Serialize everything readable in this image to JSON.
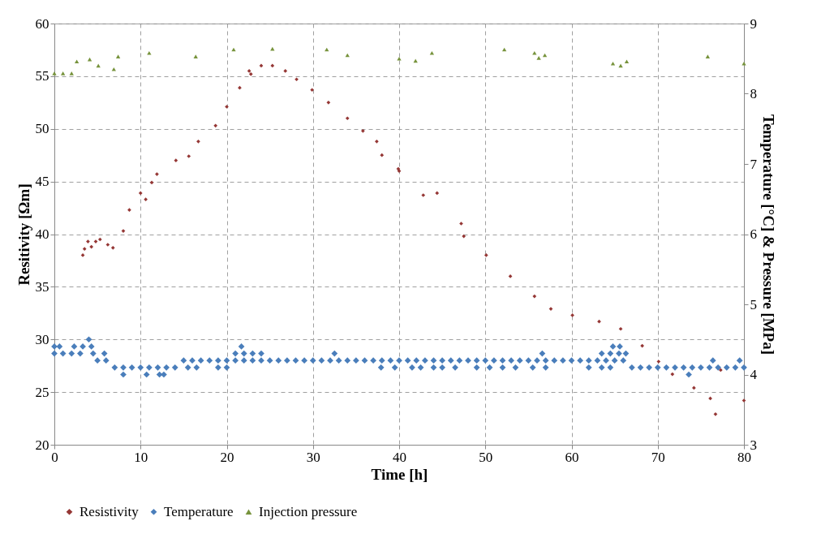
{
  "chart_data": {
    "type": "scatter",
    "xlabel": "Time [h]",
    "ylabel": "Resitivity [Ωm]",
    "y2label": "Temperature [°C] & Pressure [MPa]",
    "xlim": [
      0,
      80
    ],
    "xticks": [
      0,
      10,
      20,
      30,
      40,
      50,
      60,
      70,
      80
    ],
    "ylim": [
      20,
      60
    ],
    "yticks": [
      20,
      25,
      30,
      35,
      40,
      45,
      50,
      55,
      60
    ],
    "y2lim": [
      3,
      9
    ],
    "y2ticks": [
      3,
      4,
      5,
      6,
      7,
      8,
      9
    ],
    "grid": true,
    "legend": "bottom",
    "series": [
      {
        "name": "Resistivity",
        "color": "#953735",
        "marker": "diamond",
        "x": [
          3.3,
          3.5,
          3.9,
          4.3,
          4.8,
          5.3,
          6.2,
          6.8,
          8.0,
          8.7,
          10.0,
          10.6,
          11.3,
          11.9,
          14.1,
          15.6,
          16.7,
          18.7,
          20.0,
          21.5,
          22.6,
          22.8,
          24.0,
          25.3,
          26.8,
          28.1,
          29.9,
          31.8,
          34.0,
          35.8,
          37.4,
          38.0,
          39.9,
          40.0,
          42.8,
          44.4,
          47.2,
          47.5,
          50.1,
          52.9,
          55.7,
          57.6,
          60.1,
          63.2,
          65.7,
          68.2,
          70.1,
          71.7,
          74.2,
          76.1,
          76.7,
          77.3,
          80.0
        ],
        "values": [
          38.0,
          38.6,
          39.3,
          38.8,
          39.3,
          39.5,
          39.0,
          38.7,
          40.3,
          42.3,
          43.9,
          43.3,
          44.9,
          45.7,
          47.0,
          47.4,
          48.8,
          50.3,
          52.1,
          53.9,
          55.5,
          55.2,
          56.0,
          56.0,
          55.5,
          54.7,
          53.7,
          52.5,
          51.0,
          49.8,
          48.8,
          47.5,
          46.2,
          46.0,
          43.7,
          43.9,
          41.0,
          39.8,
          38.0,
          36.0,
          34.1,
          32.9,
          32.3,
          31.7,
          31.0,
          29.4,
          27.9,
          26.7,
          25.4,
          24.4,
          22.9,
          27.1,
          24.2
        ]
      },
      {
        "name": "Temperature",
        "color": "#4a7ebb",
        "marker": "diamond",
        "axis": "y2",
        "x": [
          0,
          1,
          2,
          3,
          5,
          6,
          7,
          8,
          9,
          10,
          11,
          12,
          13,
          14,
          15,
          16,
          17,
          18,
          19,
          20,
          21,
          22,
          23,
          24,
          25,
          26,
          27,
          28,
          29,
          30,
          31,
          32,
          33,
          34,
          35,
          36,
          37,
          38,
          39,
          40,
          41,
          42,
          43,
          44,
          45,
          46,
          47,
          48,
          49,
          50,
          51,
          52,
          53,
          54,
          55,
          56,
          57,
          58,
          59,
          60,
          61,
          62,
          63,
          64,
          65,
          66,
          67,
          68,
          69,
          70,
          71,
          72,
          73,
          74,
          75,
          76,
          77,
          78,
          79,
          80,
          0,
          0.6,
          2.3,
          3.3,
          4.0,
          4.3,
          4.5,
          5.8,
          8.0,
          10.7,
          12.2,
          12.7,
          15.5,
          16.5,
          19,
          20,
          21,
          22,
          23,
          24,
          21.7,
          32.5,
          37.9,
          39.5,
          41.5,
          42.5,
          44,
          45,
          46.5,
          49,
          50.5,
          52,
          53.5,
          55.5,
          57,
          56.6,
          62,
          63.5,
          64.5,
          63.5,
          64.5,
          65.5,
          64.8,
          65.6,
          66.3,
          73.6,
          76.4,
          79.5
        ],
        "values": [
          4.3,
          4.3,
          4.3,
          4.3,
          4.2,
          4.2,
          4.1,
          4.1,
          4.1,
          4.1,
          4.1,
          4.1,
          4.1,
          4.1,
          4.2,
          4.2,
          4.2,
          4.2,
          4.2,
          4.2,
          4.2,
          4.2,
          4.2,
          4.2,
          4.2,
          4.2,
          4.2,
          4.2,
          4.2,
          4.2,
          4.2,
          4.2,
          4.2,
          4.2,
          4.2,
          4.2,
          4.2,
          4.2,
          4.2,
          4.2,
          4.2,
          4.2,
          4.2,
          4.2,
          4.2,
          4.2,
          4.2,
          4.2,
          4.2,
          4.2,
          4.2,
          4.2,
          4.2,
          4.2,
          4.2,
          4.2,
          4.2,
          4.2,
          4.2,
          4.2,
          4.2,
          4.2,
          4.2,
          4.2,
          4.2,
          4.2,
          4.1,
          4.1,
          4.1,
          4.1,
          4.1,
          4.1,
          4.1,
          4.1,
          4.1,
          4.1,
          4.1,
          4.1,
          4.1,
          4.1,
          4.4,
          4.4,
          4.4,
          4.4,
          4.5,
          4.4,
          4.3,
          4.3,
          4.0,
          4.0,
          4.0,
          4.0,
          4.1,
          4.1,
          4.1,
          4.1,
          4.3,
          4.3,
          4.3,
          4.3,
          4.4,
          4.3,
          4.1,
          4.1,
          4.1,
          4.1,
          4.1,
          4.1,
          4.1,
          4.1,
          4.1,
          4.1,
          4.1,
          4.1,
          4.1,
          4.3,
          4.1,
          4.1,
          4.1,
          4.3,
          4.3,
          4.3,
          4.4,
          4.4,
          4.3,
          4.0,
          4.2,
          4.2
        ]
      },
      {
        "name": "Injection pressure",
        "color": "#77933c",
        "marker": "triangle",
        "axis": "y2",
        "x": [
          0,
          1,
          2,
          2.6,
          4.1,
          5.1,
          6.9,
          7.4,
          11,
          16.4,
          20.8,
          25.3,
          31.6,
          34,
          40,
          41.9,
          43.8,
          52.2,
          55.7,
          56.2,
          56.9,
          64.8,
          65.7,
          66.4,
          75.8,
          80
        ],
        "values": [
          8.29,
          8.29,
          8.29,
          8.46,
          8.49,
          8.4,
          8.35,
          8.53,
          8.58,
          8.53,
          8.63,
          8.64,
          8.63,
          8.55,
          8.5,
          8.47,
          8.58,
          8.63,
          8.58,
          8.51,
          8.55,
          8.43,
          8.4,
          8.46,
          8.53,
          8.43
        ]
      }
    ]
  }
}
